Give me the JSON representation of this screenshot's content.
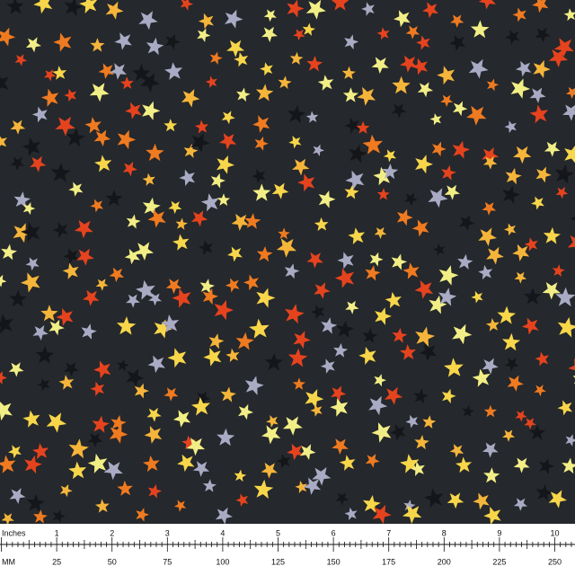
{
  "ruler": {
    "inches": {
      "label": "Inches",
      "ticks": [
        1,
        2,
        3,
        4,
        5,
        6,
        7,
        8,
        9,
        10
      ]
    },
    "mm": {
      "label": "MM",
      "ticks": [
        25,
        50,
        75,
        100,
        125,
        150,
        175,
        200,
        225,
        250
      ]
    }
  }
}
